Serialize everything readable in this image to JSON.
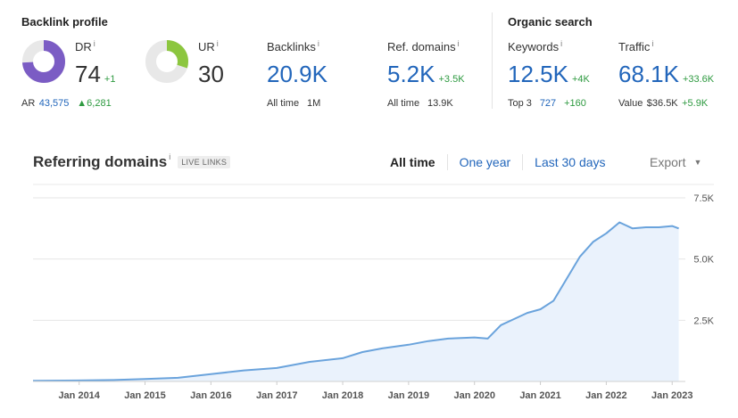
{
  "backlink_profile": {
    "title": "Backlink profile",
    "dr": {
      "label": "DR",
      "info": "i",
      "value": "74",
      "delta": "+1",
      "gauge_fraction": 0.74,
      "color": "#7b5cc4"
    },
    "ur": {
      "label": "UR",
      "info": "i",
      "value": "30",
      "gauge_fraction": 0.3,
      "color": "#8cc63f"
    },
    "ar": {
      "label": "AR",
      "value": "43,575",
      "delta": "▲6,281"
    },
    "backlinks": {
      "label": "Backlinks",
      "info": "i",
      "value": "20.9K",
      "sub_label": "All time",
      "sub_value": "1M"
    },
    "ref_domains": {
      "label": "Ref. domains",
      "info": "i",
      "value": "5.2K",
      "delta": "+3.5K",
      "sub_label": "All time",
      "sub_value": "13.9K"
    }
  },
  "organic_search": {
    "title": "Organic search",
    "keywords": {
      "label": "Keywords",
      "info": "i",
      "value": "12.5K",
      "delta": "+4K",
      "sub_label": "Top 3",
      "sub_value": "727",
      "sub_delta": "+160"
    },
    "traffic": {
      "label": "Traffic",
      "info": "i",
      "value": "68.1K",
      "delta": "+33.6K",
      "sub_label": "Value",
      "sub_value": "$36.5K",
      "sub_delta": "+5.9K"
    }
  },
  "referring_domains": {
    "title": "Referring domains",
    "info": "i",
    "badge": "LIVE LINKS",
    "tabs": [
      {
        "label": "All time",
        "active": true
      },
      {
        "label": "One year",
        "active": false
      },
      {
        "label": "Last 30 days",
        "active": false
      }
    ],
    "export_label": "Export",
    "export_arrow": "▼"
  },
  "chart_data": {
    "type": "area",
    "x_tick_labels": [
      "Jan 2014",
      "Jan 2015",
      "Jan 2016",
      "Jan 2017",
      "Jan 2018",
      "Jan 2019",
      "Jan 2020",
      "Jan 2021",
      "Jan 2022",
      "Jan 2023"
    ],
    "y_tick_labels": [
      "7.5K",
      "5.0K",
      "2.5K"
    ],
    "y_ticks": [
      7500,
      5000,
      2500
    ],
    "ylim": [
      0,
      7500
    ],
    "xlim": [
      2013.3,
      2023.2
    ],
    "grid": true,
    "line_color": "#6aa3dc",
    "fill_color": "#eaf2fc",
    "x": [
      2013.3,
      2014.0,
      2014.5,
      2015.0,
      2015.5,
      2016.0,
      2016.5,
      2017.0,
      2017.5,
      2018.0,
      2018.3,
      2018.6,
      2019.0,
      2019.3,
      2019.6,
      2020.0,
      2020.2,
      2020.4,
      2020.6,
      2020.8,
      2021.0,
      2021.2,
      2021.4,
      2021.6,
      2021.8,
      2022.0,
      2022.2,
      2022.4,
      2022.6,
      2022.8,
      2023.0,
      2023.1
    ],
    "y": [
      30,
      40,
      60,
      100,
      150,
      300,
      450,
      550,
      800,
      950,
      1200,
      1350,
      1500,
      1650,
      1750,
      1800,
      1750,
      2300,
      2550,
      2800,
      2950,
      3300,
      4200,
      5100,
      5700,
      6050,
      6500,
      6250,
      6300,
      6300,
      6350,
      6250
    ]
  }
}
